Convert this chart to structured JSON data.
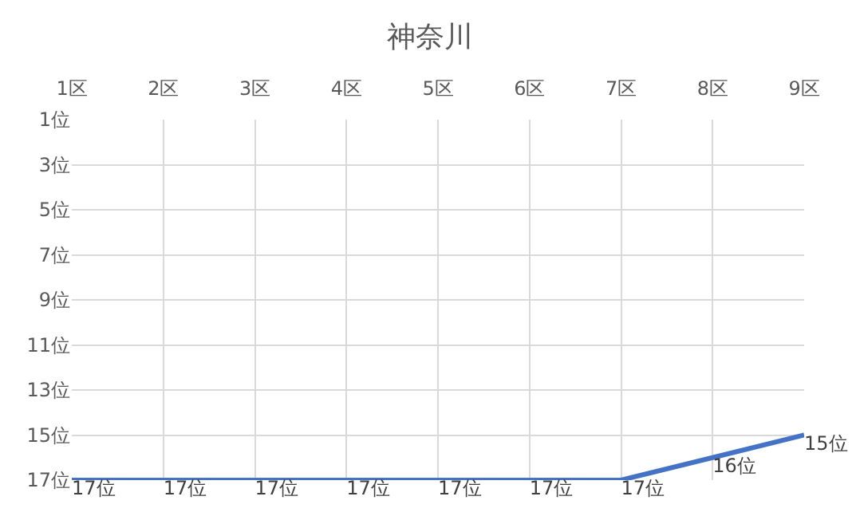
{
  "chart_data": {
    "type": "line",
    "title": "神奈川",
    "categories": [
      "1区",
      "2区",
      "3区",
      "4区",
      "5区",
      "6区",
      "7区",
      "8区",
      "9区"
    ],
    "series": [
      {
        "color": "#4472c4",
        "values": [
          17,
          17,
          17,
          17,
          17,
          17,
          17,
          16,
          15
        ],
        "value_labels": [
          "17位",
          "17位",
          "17位",
          "17位",
          "17位",
          "17位",
          "17位",
          "16位",
          "15位"
        ]
      }
    ],
    "ylim": [
      17,
      1
    ],
    "yticks": [
      {
        "value": 1,
        "label": "1位"
      },
      {
        "value": 3,
        "label": "3位"
      },
      {
        "value": 5,
        "label": "5位"
      },
      {
        "value": 7,
        "label": "7位"
      },
      {
        "value": 9,
        "label": "9位"
      },
      {
        "value": 11,
        "label": "11位"
      },
      {
        "value": 13,
        "label": "13位"
      },
      {
        "value": 15,
        "label": "15位"
      },
      {
        "value": 17,
        "label": "17位"
      }
    ],
    "grid": true,
    "marker": "none",
    "line_style": "solid"
  }
}
